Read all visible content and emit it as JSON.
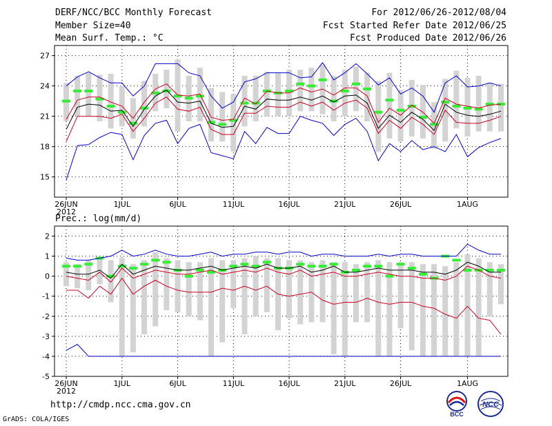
{
  "header": {
    "title": "DERF/NCC/BCC Monthly Forecast",
    "member_size": "Member Size=40",
    "variable_temp": "Mean Surf. Temp.: °C",
    "period": "For 2012/06/26-2012/08/04",
    "refer_date": "Fcst Started Refer Date 2012/06/25",
    "produced_date": "Fcst Produced Date 2012/06/26"
  },
  "footer": {
    "url": "http://cmdp.ncc.cma.gov.cn",
    "grads": "GrADS: COLA/IGES",
    "logo_left": "BCC",
    "logo_right": "NCC"
  },
  "colors": {
    "max_min": "#0000cc",
    "mean": "#000000",
    "spread": "#cc0022",
    "box": "#d3d3d3",
    "obs": "#33ee33",
    "grid": "#000000"
  },
  "chart_data": [
    {
      "type": "line",
      "title": "Mean Surf. Temp.: °C",
      "x": [
        "06/26",
        "06/27",
        "06/28",
        "06/29",
        "06/30",
        "07/01",
        "07/02",
        "07/03",
        "07/04",
        "07/05",
        "07/06",
        "07/07",
        "07/08",
        "07/09",
        "07/10",
        "07/11",
        "07/12",
        "07/13",
        "07/14",
        "07/15",
        "07/16",
        "07/17",
        "07/18",
        "07/19",
        "07/20",
        "07/21",
        "07/22",
        "07/23",
        "07/24",
        "07/25",
        "07/26",
        "07/27",
        "07/28",
        "07/29",
        "07/30",
        "07/31",
        "08/01",
        "08/02",
        "08/03",
        "08/04"
      ],
      "x_tick_labels": [
        "26JUN",
        "1JUL",
        "6JUL",
        "11JUL",
        "16JUL",
        "21JUL",
        "26JUL",
        "1AUG"
      ],
      "x_tick_index": [
        0,
        5,
        10,
        15,
        20,
        25,
        30,
        36
      ],
      "x_sublabel": "2012",
      "ylim": [
        13,
        28
      ],
      "yticks": [
        15,
        18,
        21,
        24,
        27
      ],
      "grid": true,
      "series": [
        {
          "name": "max",
          "values": [
            14.7,
            18.1,
            18.2,
            18.9,
            19.4,
            19.2,
            16.7,
            19.1,
            20.3,
            20.6,
            18.3,
            19.8,
            20.2,
            17.4,
            17.1,
            16.8,
            19.5,
            18.3,
            19.9,
            19.3,
            19.3,
            21.0,
            20.6,
            20.3,
            19.1,
            20.2,
            20.8,
            19.5,
            16.6,
            18.3,
            17.5,
            18.6,
            17.7,
            18.0,
            17.5,
            19.2,
            17.0,
            17.9,
            18.4,
            18.8
          ]
        },
        {
          "name": "spread_low",
          "values": [
            18.5,
            21.0,
            21.0,
            21.0,
            20.8,
            21.2,
            19.5,
            20.8,
            22.3,
            22.9,
            21.7,
            21.5,
            21.9,
            19.7,
            19.2,
            19.2,
            21.3,
            21.3,
            22.0,
            21.9,
            21.9,
            22.4,
            22.0,
            22.4,
            21.6,
            22.3,
            22.6,
            21.8,
            19.3,
            20.6,
            19.8,
            20.9,
            20.2,
            19.2,
            21.6,
            20.4,
            20.3,
            20.3,
            20.6,
            21.0
          ]
        },
        {
          "name": "mean",
          "values": [
            19.7,
            21.9,
            22.2,
            22.1,
            21.5,
            21.6,
            20.0,
            21.7,
            23.0,
            23.6,
            22.4,
            22.3,
            22.5,
            20.3,
            19.9,
            20.0,
            22.0,
            21.7,
            22.7,
            22.6,
            22.6,
            22.9,
            22.6,
            23.0,
            22.4,
            23.0,
            23.1,
            22.3,
            19.8,
            21.1,
            20.4,
            21.4,
            20.7,
            19.6,
            22.2,
            21.4,
            21.1,
            21.0,
            21.2,
            21.5
          ]
        },
        {
          "name": "spread_high",
          "values": [
            20.7,
            22.6,
            22.9,
            22.9,
            22.4,
            22.0,
            20.8,
            22.4,
            23.7,
            24.2,
            23.1,
            23.0,
            23.2,
            20.9,
            20.6,
            20.7,
            22.8,
            22.2,
            23.5,
            23.3,
            23.3,
            23.8,
            23.4,
            23.7,
            23.1,
            23.8,
            23.8,
            23.0,
            20.4,
            21.8,
            21.1,
            22.1,
            21.4,
            20.3,
            22.8,
            22.2,
            22.0,
            21.8,
            22.1,
            22.2
          ]
        },
        {
          "name": "min",
          "values": [
            24.0,
            24.9,
            25.4,
            24.8,
            24.3,
            24.3,
            23.0,
            24.0,
            26.2,
            26.2,
            26.2,
            25.3,
            25.0,
            23.0,
            21.8,
            22.4,
            24.4,
            24.7,
            25.3,
            25.3,
            25.3,
            24.8,
            24.9,
            26.3,
            24.6,
            25.3,
            26.2,
            25.2,
            24.1,
            24.8,
            23.2,
            23.8,
            23.0,
            21.4,
            24.3,
            25.0,
            23.9,
            24.0,
            24.3,
            24.0
          ]
        }
      ],
      "box_top": [
        24.3,
        25.0,
        25.3,
        25.1,
        25.2,
        24.0,
        22.8,
        24.5,
        25.2,
        25.6,
        26.6,
        25.0,
        25.8,
        23.8,
        23.4,
        23.2,
        25.0,
        25.0,
        25.4,
        25.3,
        25.6,
        25.6,
        25.8,
        26.1,
        25.0,
        25.6,
        25.9,
        25.3,
        24.5,
        25.3,
        23.6,
        24.6,
        24.1,
        22.4,
        24.7,
        25.5,
        24.8,
        25.0,
        24.3,
        24.2
      ],
      "box_bottom": [
        20.5,
        21.0,
        21.0,
        20.5,
        19.8,
        20.0,
        18.8,
        20.0,
        21.5,
        21.8,
        19.5,
        20.5,
        20.5,
        18.5,
        18.5,
        17.5,
        20.0,
        20.5,
        21.0,
        21.0,
        21.0,
        21.5,
        21.5,
        21.2,
        20.5,
        21.0,
        21.5,
        20.5,
        17.5,
        18.8,
        18.5,
        19.0,
        18.8,
        17.8,
        18.5,
        19.8,
        19.0,
        19.5,
        19.5,
        19.5
      ],
      "observed": [
        22.5,
        23.5,
        23.5,
        22.7,
        22.0,
        21.4,
        20.3,
        21.8,
        23.3,
        23.5,
        23.0,
        22.8,
        23.0,
        20.4,
        20.2,
        20.6,
        22.3,
        22.3,
        23.5,
        23.3,
        23.5,
        24.2,
        24.0,
        24.6,
        22.5,
        23.5,
        24.2,
        23.7,
        21.4,
        22.6,
        21.6,
        22.0,
        20.9,
        20.2,
        22.4,
        22.0,
        21.8,
        21.7,
        22.2,
        22.2
      ]
    },
    {
      "type": "line",
      "title": "Prec.: log(mm/d)",
      "x": [
        "06/26",
        "06/27",
        "06/28",
        "06/29",
        "06/30",
        "07/01",
        "07/02",
        "07/03",
        "07/04",
        "07/05",
        "07/06",
        "07/07",
        "07/08",
        "07/09",
        "07/10",
        "07/11",
        "07/12",
        "07/13",
        "07/14",
        "07/15",
        "07/16",
        "07/17",
        "07/18",
        "07/19",
        "07/20",
        "07/21",
        "07/22",
        "07/23",
        "07/24",
        "07/25",
        "07/26",
        "07/27",
        "07/28",
        "07/29",
        "07/30",
        "07/31",
        "08/01",
        "08/02",
        "08/03",
        "08/04"
      ],
      "x_tick_labels": [
        "26JUN",
        "1JUL",
        "6JUL",
        "11JUL",
        "16JUL",
        "21JUL",
        "26JUL",
        "1AUG"
      ],
      "x_tick_index": [
        0,
        5,
        10,
        15,
        20,
        25,
        30,
        36
      ],
      "x_sublabel": "2012",
      "ylim": [
        -5,
        2.5
      ],
      "yticks": [
        -5,
        -4,
        -3,
        -2,
        -1,
        0,
        1,
        2
      ],
      "grid": true,
      "series": [
        {
          "name": "max",
          "values": [
            -3.7,
            -3.4,
            -4.0,
            -4.0,
            -4.0,
            -4.0,
            -4.0,
            -4.0,
            -4.0,
            -4.0,
            -4.0,
            -4.0,
            -4.0,
            -4.0,
            -4.0,
            -4.0,
            -4.0,
            -4.0,
            -4.0,
            -4.0,
            -4.0,
            -4.0,
            -4.0,
            -4.0,
            -4.0,
            -4.0,
            -4.0,
            -4.0,
            -4.0,
            -4.0,
            -4.0,
            -4.0,
            -4.0,
            -4.0,
            -4.0,
            -4.0,
            -4.0,
            -4.0,
            -4.0,
            -4.0
          ]
        },
        {
          "name": "spread_low",
          "values": [
            -0.7,
            -0.7,
            -1.1,
            -0.5,
            -0.9,
            -0.1,
            -0.9,
            -0.5,
            -0.2,
            -0.5,
            -0.7,
            -0.8,
            -0.8,
            -0.8,
            -0.6,
            -0.7,
            -0.5,
            -0.7,
            -0.5,
            -0.9,
            -1.0,
            -0.9,
            -0.8,
            -1.2,
            -1.4,
            -1.3,
            -1.3,
            -1.1,
            -1.3,
            -1.4,
            -1.3,
            -1.3,
            -1.5,
            -1.6,
            -1.9,
            -2.1,
            -1.5,
            -2.1,
            -2.2,
            -2.9
          ]
        },
        {
          "name": "mean",
          "values": [
            0.2,
            0.1,
            0.1,
            0.3,
            -0.1,
            0.6,
            0.1,
            0.3,
            0.5,
            0.4,
            0.3,
            0.3,
            0.4,
            0.5,
            0.3,
            0.4,
            0.5,
            0.4,
            0.6,
            0.4,
            0.4,
            0.5,
            0.2,
            0.3,
            0.5,
            0.2,
            0.2,
            0.3,
            0.4,
            0.3,
            0.3,
            0.3,
            0.2,
            0.2,
            0.1,
            0.3,
            0.7,
            0.5,
            0.2,
            0.2
          ]
        },
        {
          "name": "spread_high",
          "values": [
            0.0,
            -0.1,
            -0.2,
            0.2,
            -0.3,
            0.4,
            -0.1,
            0.1,
            0.3,
            0.2,
            0.1,
            0.1,
            0.2,
            0.3,
            0.1,
            0.2,
            0.3,
            0.2,
            0.4,
            0.2,
            0.1,
            0.3,
            0.0,
            0.1,
            0.2,
            0.0,
            0.0,
            0.1,
            0.2,
            0.1,
            0.0,
            0.0,
            -0.1,
            -0.1,
            -0.2,
            0.0,
            0.5,
            0.3,
            0.0,
            -0.1
          ]
        },
        {
          "name": "min",
          "values": [
            0.9,
            0.8,
            0.8,
            0.9,
            1.0,
            1.3,
            1.0,
            1.1,
            1.3,
            1.1,
            1.0,
            1.0,
            1.1,
            1.2,
            1.0,
            1.1,
            1.1,
            1.2,
            1.2,
            1.1,
            1.2,
            1.2,
            1.0,
            1.1,
            1.1,
            1.0,
            1.0,
            1.0,
            1.1,
            1.0,
            1.1,
            1.1,
            1.0,
            1.0,
            1.0,
            1.0,
            1.6,
            1.3,
            1.1,
            1.1
          ]
        }
      ],
      "box_top": [
        0.7,
        0.6,
        0.8,
        0.9,
        0.8,
        0.9,
        0.6,
        0.8,
        1.2,
        0.9,
        0.8,
        0.7,
        0.7,
        0.9,
        0.8,
        0.8,
        0.9,
        1.0,
        0.9,
        0.9,
        0.8,
        0.8,
        0.7,
        0.8,
        0.7,
        0.7,
        0.6,
        0.7,
        0.8,
        0.7,
        0.7,
        0.7,
        0.6,
        0.6,
        0.5,
        0.7,
        1.1,
        0.9,
        0.7,
        0.6
      ],
      "box_bottom": [
        -0.5,
        -0.6,
        -0.7,
        -0.4,
        -1.3,
        -4.0,
        -3.8,
        -2.9,
        -2.5,
        -1.7,
        -1.8,
        -2.0,
        -2.2,
        -4.0,
        -3.3,
        -1.6,
        -2.9,
        -2.0,
        -1.8,
        -2.7,
        -2.1,
        -2.4,
        -2.3,
        -2.3,
        -3.9,
        -4.0,
        -2.3,
        -2.3,
        -4.0,
        -4.0,
        -2.6,
        -3.7,
        -4.0,
        -4.0,
        -4.0,
        -4.0,
        -4.0,
        -4.0,
        -2.0,
        -1.4
      ],
      "observed": [
        0.5,
        0.5,
        0.6,
        0.9,
        0.0,
        0.5,
        0.4,
        0.6,
        0.8,
        0.7,
        0.3,
        0.0,
        0.3,
        0.2,
        0.3,
        0.5,
        0.6,
        0.5,
        0.7,
        0.4,
        0.4,
        0.6,
        0.5,
        0.5,
        0.6,
        0.2,
        0.3,
        0.5,
        0.5,
        0.0,
        0.6,
        0.4,
        0.1,
        -0.1,
        1.0,
        0.8,
        0.3,
        0.3,
        0.3,
        0.3
      ]
    }
  ]
}
